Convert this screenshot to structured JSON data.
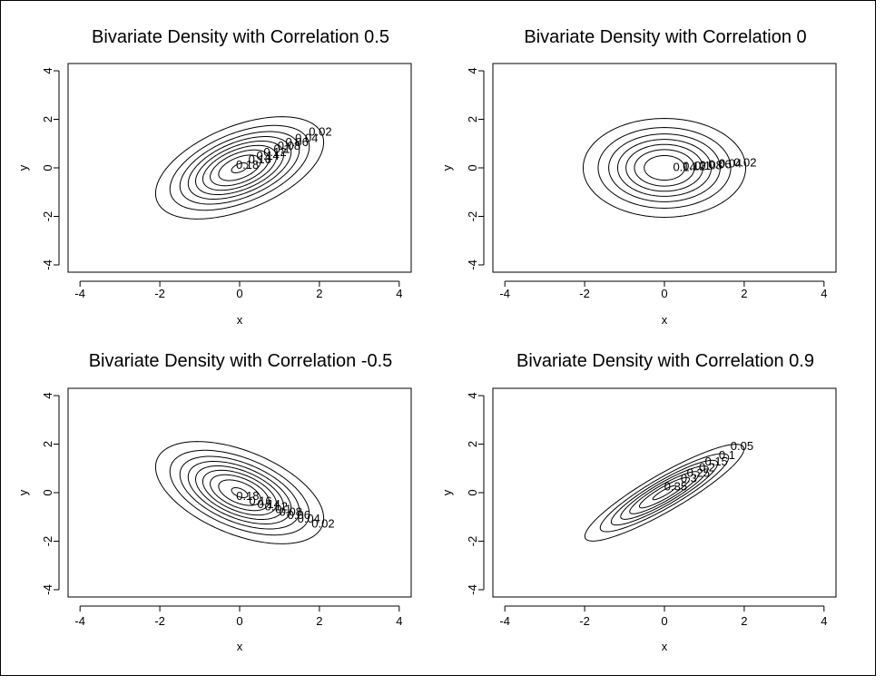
{
  "chart_data": [
    {
      "type": "contour",
      "title": "Bivariate Density with Correlation 0.5",
      "xlabel": "x",
      "ylabel": "y",
      "xlim": [
        -4.3,
        4.3
      ],
      "ylim": [
        -4.3,
        4.3
      ],
      "xticks": [
        -4,
        -2,
        0,
        2,
        4
      ],
      "yticks": [
        -4,
        -2,
        0,
        2,
        4
      ],
      "correlation": 0.5,
      "levels": [
        0.02,
        0.04,
        0.06,
        0.08,
        0.1,
        0.12,
        0.14,
        0.16,
        0.18
      ],
      "level_labels": [
        "0.02",
        "0.04",
        "0.06",
        "0.08",
        "0.1",
        "0.12",
        "0.14",
        "0.16",
        "0.18"
      ]
    },
    {
      "type": "contour",
      "title": "Bivariate Density with Correlation 0",
      "xlabel": "x",
      "ylabel": "y",
      "xlim": [
        -4.3,
        4.3
      ],
      "ylim": [
        -4.3,
        4.3
      ],
      "xticks": [
        -4,
        -2,
        0,
        2,
        4
      ],
      "yticks": [
        -4,
        -2,
        0,
        2,
        4
      ],
      "correlation": 0,
      "levels": [
        0.02,
        0.04,
        0.06,
        0.08,
        0.1,
        0.12,
        0.14
      ],
      "level_labels": [
        "0.02",
        "0.04",
        "0.06",
        "0.08",
        "0.1",
        "0.12",
        "0.14"
      ]
    },
    {
      "type": "contour",
      "title": "Bivariate Density with Correlation -0.5",
      "xlabel": "x",
      "ylabel": "y",
      "xlim": [
        -4.3,
        4.3
      ],
      "ylim": [
        -4.3,
        4.3
      ],
      "xticks": [
        -4,
        -2,
        0,
        2,
        4
      ],
      "yticks": [
        -4,
        -2,
        0,
        2,
        4
      ],
      "correlation": -0.5,
      "levels": [
        0.02,
        0.04,
        0.06,
        0.08,
        0.1,
        0.12,
        0.14,
        0.16,
        0.18
      ],
      "level_labels": [
        "0.02",
        "0.04",
        "0.06",
        "0.08",
        "0.1",
        "0.12",
        "0.14",
        "0.16",
        "0.18"
      ]
    },
    {
      "type": "contour",
      "title": "Bivariate Density with Correlation 0.9",
      "xlabel": "x",
      "ylabel": "y",
      "xlim": [
        -4.3,
        4.3
      ],
      "ylim": [
        -4.3,
        4.3
      ],
      "xticks": [
        -4,
        -2,
        0,
        2,
        4
      ],
      "yticks": [
        -4,
        -2,
        0,
        2,
        4
      ],
      "correlation": 0.9,
      "levels": [
        0.05,
        0.1,
        0.15,
        0.2,
        0.25,
        0.3,
        0.35
      ],
      "level_labels": [
        "0.05",
        "0.1",
        "0.15",
        "0.2",
        "0.25",
        "0.3",
        "0.35"
      ]
    }
  ]
}
